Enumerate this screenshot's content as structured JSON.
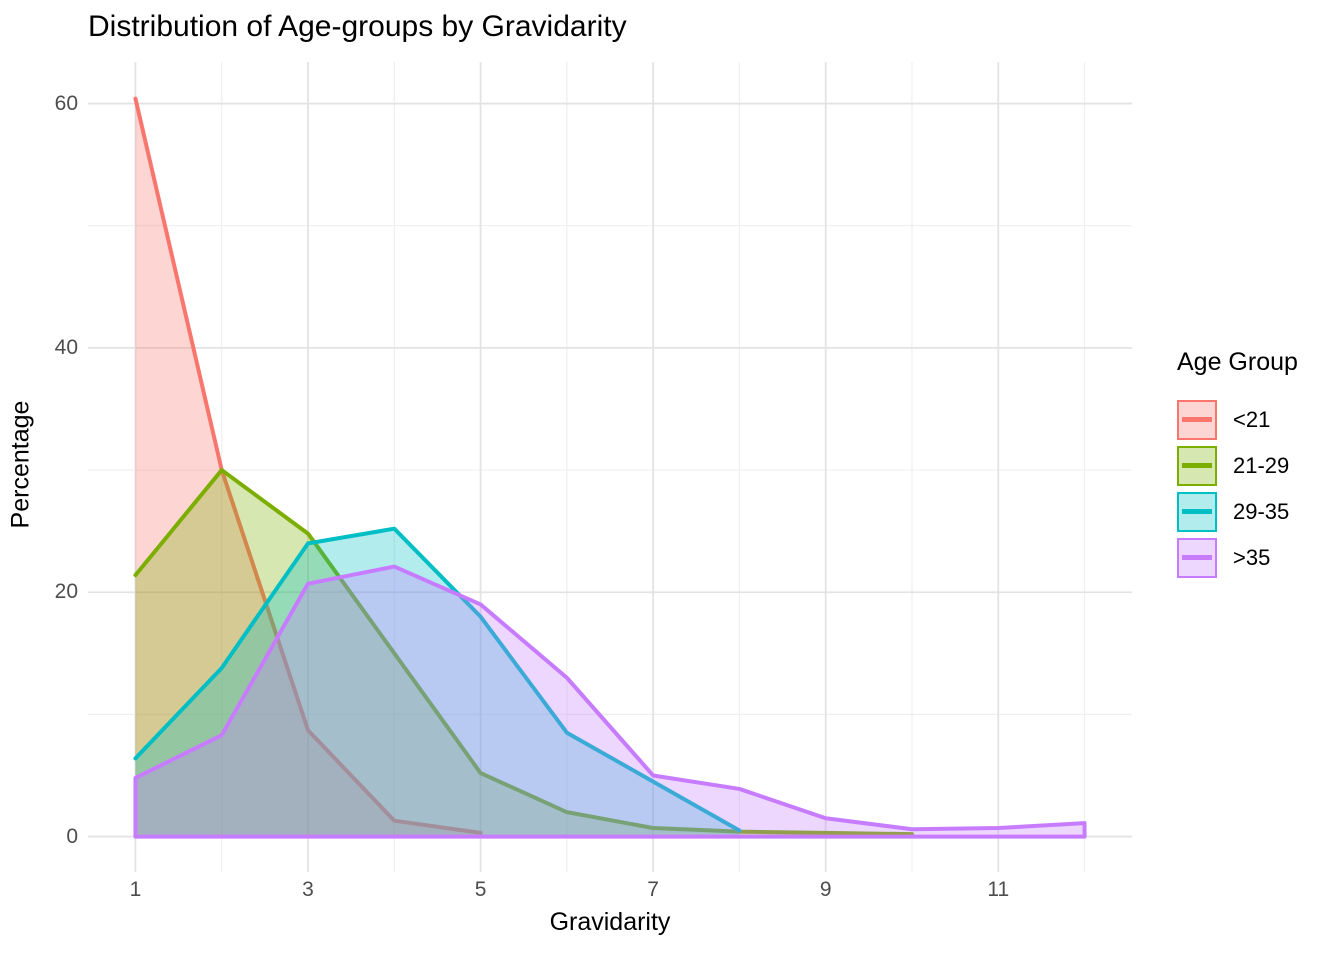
{
  "title": "Distribution of Age-groups by Gravidarity",
  "axes": {
    "x": {
      "title": "Gravidarity",
      "ticks": [
        1,
        3,
        5,
        7,
        9,
        11
      ]
    },
    "y": {
      "title": "Percentage",
      "ticks": [
        0,
        20,
        40,
        60
      ]
    }
  },
  "legend": {
    "title": "Age Group",
    "entries": [
      {
        "label": "<21",
        "color": "#F8766D"
      },
      {
        "label": "21-29",
        "color": "#7CAE00"
      },
      {
        "label": "29-35",
        "color": "#00BFC4"
      },
      {
        "label": ">35",
        "color": "#C77CFF"
      }
    ]
  },
  "colors": {
    "grid_major": "#E3E3E3",
    "grid_minor": "#EFEFEF",
    "tick_text": "#4d4d4d",
    "title_text": "#000000"
  },
  "chart_data": {
    "type": "area",
    "title": "Distribution of Age-groups by Gravidarity",
    "xlabel": "Gravidarity",
    "ylabel": "Percentage",
    "xlim": [
      0.45,
      12.55
    ],
    "ylim": [
      -2.9,
      63.4
    ],
    "x_breaks": [
      1,
      3,
      5,
      7,
      9,
      11
    ],
    "x_minor_breaks": [
      2,
      4,
      6,
      8,
      10,
      12
    ],
    "y_breaks": [
      0,
      20,
      40,
      60
    ],
    "y_minor_breaks": [
      10,
      30,
      50
    ],
    "grid": true,
    "legend_position": "right",
    "legend_title": "Age Group",
    "fill_alpha": 0.3,
    "line_width": 4,
    "series": [
      {
        "name": "<21",
        "color": "#F8766D",
        "outline": "top",
        "x": [
          1,
          2,
          3,
          4,
          5
        ],
        "values": [
          60.4,
          30.0,
          8.7,
          1.3,
          0.3
        ]
      },
      {
        "name": "21-29",
        "color": "#7CAE00",
        "outline": "top",
        "x": [
          1,
          2,
          3,
          4,
          5,
          6,
          7,
          8,
          9,
          10
        ],
        "values": [
          21.4,
          30.0,
          24.8,
          15.0,
          5.2,
          2.0,
          0.7,
          0.4,
          0.3,
          0.2
        ]
      },
      {
        "name": "29-35",
        "color": "#00BFC4",
        "outline": "top",
        "x": [
          1,
          2,
          3,
          4,
          5,
          6,
          7,
          8
        ],
        "values": [
          6.4,
          13.8,
          24.0,
          25.2,
          18.0,
          8.5,
          4.5,
          0.5
        ]
      },
      {
        "name": ">35",
        "color": "#C77CFF",
        "outline": "closed",
        "x": [
          1,
          2,
          3,
          4,
          5,
          6,
          7,
          8,
          9,
          10,
          11,
          12
        ],
        "values": [
          4.8,
          8.3,
          20.7,
          22.1,
          19.0,
          13.0,
          5.0,
          3.9,
          1.5,
          0.6,
          0.7,
          1.1
        ]
      }
    ]
  }
}
